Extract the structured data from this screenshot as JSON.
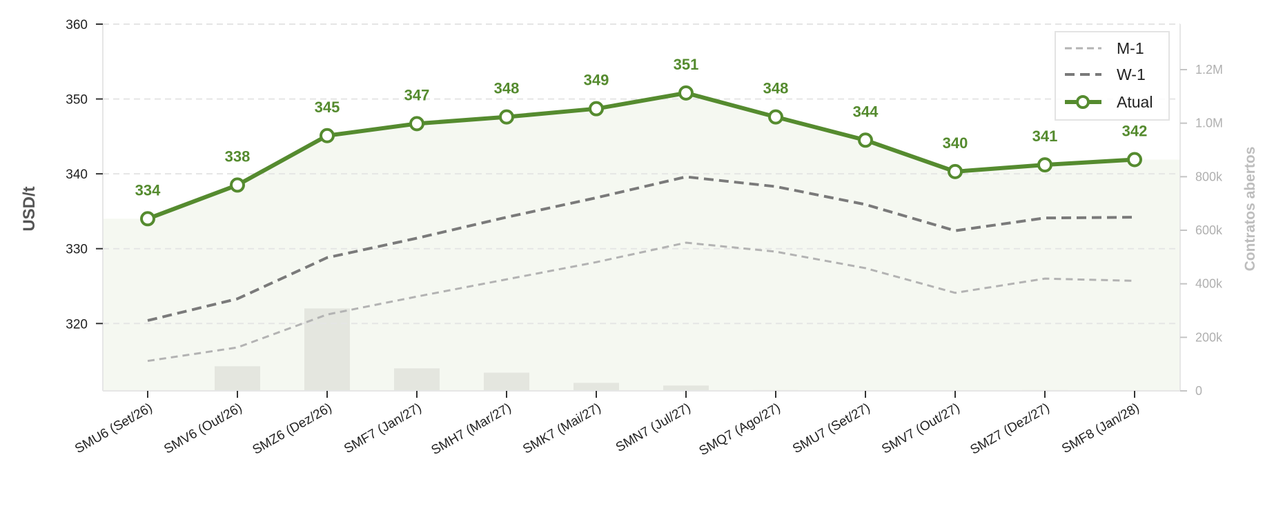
{
  "chart_data": {
    "type": "line",
    "categories": [
      "SMU6 (Set/26)",
      "SMV6 (Out/26)",
      "SMZ6 (Dez/26)",
      "SMF7 (Jan/27)",
      "SMH7 (Mar/27)",
      "SMK7 (Mai/27)",
      "SMN7 (Jul/27)",
      "SMQ7 (Ago/27)",
      "SMU7 (Set/27)",
      "SMV7 (Out/27)",
      "SMZ7 (Dez/27)",
      "SMF8 (Jan/28)"
    ],
    "ylabel": "USD/t",
    "y2label": "Contratos abertos",
    "ylim": [
      311,
      360
    ],
    "yticks": [
      320,
      330,
      340,
      350,
      360
    ],
    "y2lim": [
      0,
      1370000
    ],
    "y2ticks": [
      0,
      200000,
      400000,
      600000,
      800000,
      1000000,
      1200000
    ],
    "y2ticklabels": [
      "0",
      "200k",
      "400k",
      "600k",
      "800k",
      "1.0M",
      "1.2M"
    ],
    "series": [
      {
        "name": "M-1",
        "values": [
          315.0,
          316.8,
          321.2,
          323.6,
          325.9,
          328.2,
          330.8,
          329.6,
          327.4,
          324.1,
          326.0,
          325.7
        ],
        "color": "#b3b3b3",
        "style": "dashed"
      },
      {
        "name": "W-1",
        "values": [
          320.4,
          323.3,
          328.8,
          331.4,
          334.2,
          336.8,
          339.6,
          338.3,
          335.9,
          332.4,
          334.1,
          334.2
        ],
        "color": "#7a7a7a",
        "style": "dashed"
      },
      {
        "name": "Atual",
        "values": [
          334.0,
          338.5,
          345.1,
          346.7,
          347.6,
          348.7,
          350.8,
          347.6,
          344.5,
          340.3,
          341.2,
          341.9
        ],
        "color": "#558b2f",
        "style": "solid-markers",
        "labels": [
          "334",
          "338",
          "345",
          "347",
          "348",
          "349",
          "351",
          "348",
          "344",
          "340",
          "341",
          "342"
        ]
      }
    ],
    "open_interest": [
      null,
      92000,
      308000,
      84000,
      68000,
      30000,
      20000,
      3000,
      2000,
      1000,
      3000,
      1000
    ],
    "area_fill_color": "#f5f8f1",
    "bar_color": "#e4e6df",
    "legend_position": "top-right",
    "grid": true
  }
}
